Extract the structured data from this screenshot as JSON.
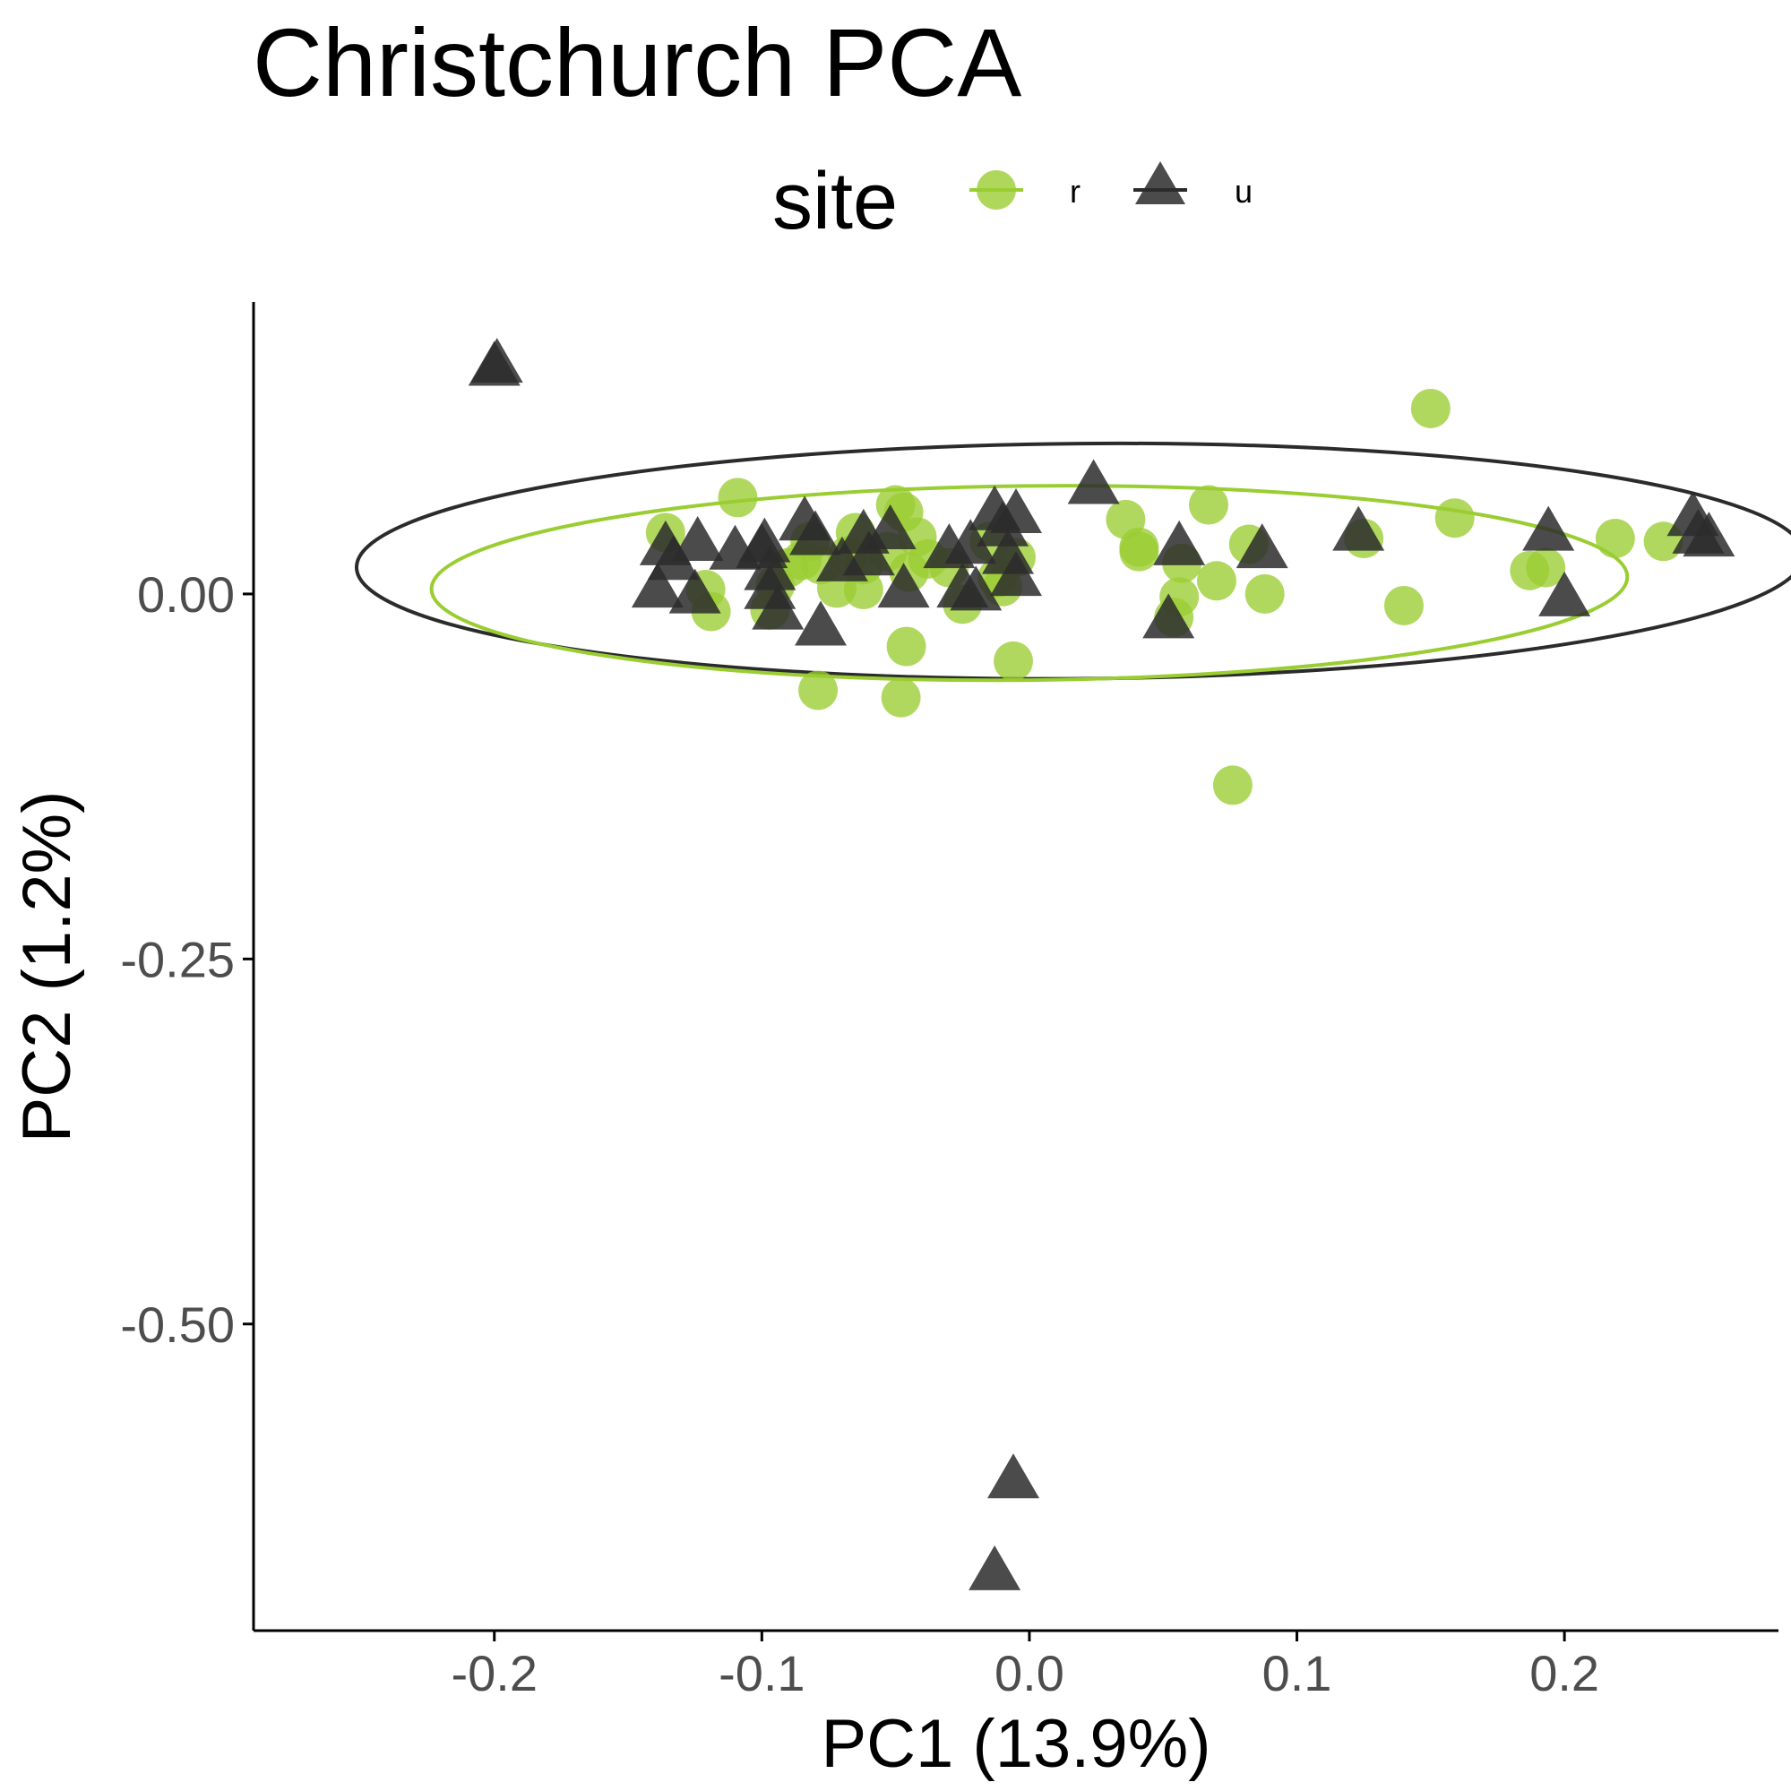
{
  "chart_data": {
    "type": "scatter",
    "title": "Christchurch PCA",
    "xlabel": "PC1 (13.9%)",
    "ylabel": "PC2 (1.2%)",
    "xlim": [
      -0.29,
      0.28
    ],
    "ylim": [
      -0.71,
      0.2
    ],
    "x_ticks": [
      -0.2,
      -0.1,
      0.0,
      0.1,
      0.2
    ],
    "x_tick_labels": [
      "-0.2",
      "-0.1",
      "0.0",
      "0.1",
      "0.2"
    ],
    "y_ticks": [
      0.0,
      -0.25,
      -0.5
    ],
    "y_tick_labels": [
      "0.00",
      "-0.25",
      "-0.50"
    ],
    "grid": false,
    "legend": {
      "title": "site",
      "placement": "top"
    },
    "ellipses": true,
    "series": [
      {
        "name": "r",
        "marker": "circle",
        "color": "#9acd32",
        "ellipse": {
          "center": [
            0.0,
            0.0075
          ],
          "half_width": 0.2235,
          "half_height": 0.0665,
          "tilt_deg": 0.6
        },
        "points": [
          [
            0.15,
            0.127
          ],
          [
            -0.109,
            0.066
          ],
          [
            -0.136,
            0.042
          ],
          [
            -0.05,
            0.061
          ],
          [
            -0.047,
            0.056
          ],
          [
            0.067,
            0.061
          ],
          [
            0.036,
            0.051
          ],
          [
            0.159,
            0.052
          ],
          [
            -0.065,
            0.042
          ],
          [
            -0.042,
            0.039
          ],
          [
            -0.082,
            0.036
          ],
          [
            -0.053,
            0.029
          ],
          [
            0.041,
            0.032
          ],
          [
            0.082,
            0.034
          ],
          [
            -0.015,
            0.036
          ],
          [
            0.125,
            0.038
          ],
          [
            -0.038,
            0.024
          ],
          [
            0.219,
            0.038
          ],
          [
            0.237,
            0.036
          ],
          [
            -0.068,
            0.026
          ],
          [
            -0.085,
            0.023
          ],
          [
            -0.078,
            0.02
          ],
          [
            -0.062,
            0.02
          ],
          [
            0.041,
            0.029
          ],
          [
            0.057,
            0.021
          ],
          [
            -0.09,
            0.018
          ],
          [
            -0.045,
            0.015
          ],
          [
            -0.062,
            0.003
          ],
          [
            -0.072,
            0.004
          ],
          [
            -0.121,
            0.003
          ],
          [
            -0.095,
            0.006
          ],
          [
            0.07,
            0.009
          ],
          [
            0.187,
            0.016
          ],
          [
            0.193,
            0.018
          ],
          [
            -0.012,
            0.011
          ],
          [
            -0.01,
            0.005
          ],
          [
            0.056,
            -0.002
          ],
          [
            0.088,
            0.0
          ],
          [
            -0.025,
            -0.007
          ],
          [
            0.14,
            -0.008
          ],
          [
            -0.097,
            -0.011
          ],
          [
            -0.119,
            -0.012
          ],
          [
            0.054,
            -0.016
          ],
          [
            -0.046,
            -0.036
          ],
          [
            -0.006,
            -0.046
          ],
          [
            -0.079,
            -0.066
          ],
          [
            -0.048,
            -0.071
          ],
          [
            0.076,
            -0.131
          ],
          [
            -0.005,
            0.025
          ],
          [
            -0.03,
            0.018
          ]
        ]
      },
      {
        "name": "u",
        "marker": "triangle",
        "color": "#2b2b2b",
        "ellipse": {
          "center": [
            0.019,
            0.0225
          ],
          "half_width": 0.2705,
          "half_height": 0.0805,
          "tilt_deg": 0.5
        },
        "points": [
          [
            -0.199,
            0.16
          ],
          [
            -0.2,
            0.158
          ],
          [
            0.024,
            0.077
          ],
          [
            -0.084,
            0.052
          ],
          [
            -0.013,
            0.059
          ],
          [
            -0.005,
            0.057
          ],
          [
            -0.01,
            0.048
          ],
          [
            -0.052,
            0.046
          ],
          [
            -0.062,
            0.043
          ],
          [
            -0.08,
            0.042
          ],
          [
            -0.124,
            0.038
          ],
          [
            -0.099,
            0.037
          ],
          [
            -0.136,
            0.035
          ],
          [
            -0.11,
            0.032
          ],
          [
            -0.1,
            0.033
          ],
          [
            -0.03,
            0.033
          ],
          [
            -0.022,
            0.036
          ],
          [
            0.056,
            0.035
          ],
          [
            0.087,
            0.033
          ],
          [
            0.123,
            0.045
          ],
          [
            0.194,
            0.045
          ],
          [
            0.248,
            0.055
          ],
          [
            0.25,
            0.043
          ],
          [
            0.254,
            0.041
          ],
          [
            -0.133,
            0.025
          ],
          [
            -0.097,
            0.018
          ],
          [
            -0.07,
            0.024
          ],
          [
            -0.06,
            0.028
          ],
          [
            -0.008,
            0.029
          ],
          [
            -0.005,
            0.014
          ],
          [
            -0.047,
            0.006
          ],
          [
            -0.025,
            0.006
          ],
          [
            -0.02,
            0.004
          ],
          [
            -0.097,
            0.005
          ],
          [
            -0.139,
            0.006
          ],
          [
            -0.125,
            0.002
          ],
          [
            -0.094,
            -0.009
          ],
          [
            0.2,
            0.0
          ],
          [
            0.052,
            -0.015
          ],
          [
            -0.078,
            -0.02
          ],
          [
            -0.006,
            -0.604
          ],
          [
            -0.013,
            -0.667
          ]
        ]
      }
    ]
  }
}
